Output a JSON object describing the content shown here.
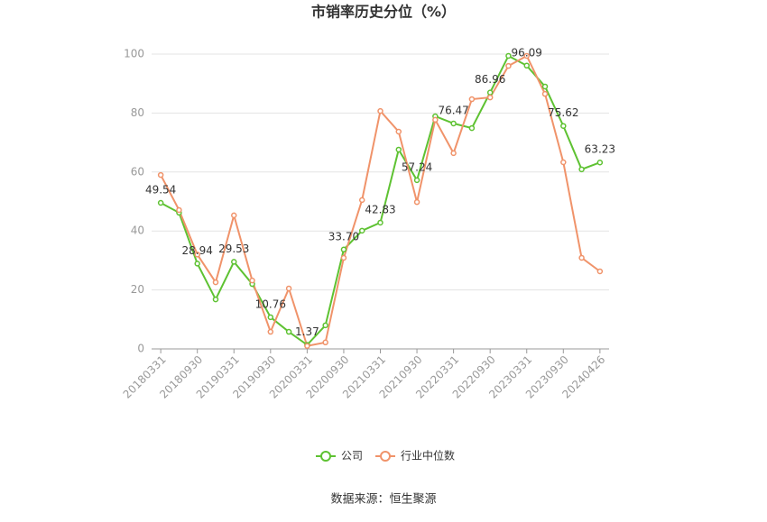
{
  "chart_data": {
    "type": "line",
    "title": "市销率历史分位（%）",
    "categories": [
      "20180331",
      null,
      "20180930",
      null,
      "20190331",
      null,
      "20190930",
      null,
      "20200331",
      null,
      "20200930",
      null,
      "20210331",
      null,
      "20210930",
      null,
      "20220331",
      null,
      "20220930",
      null,
      "20230331",
      null,
      "20230930",
      null,
      "20240426"
    ],
    "series": [
      {
        "name": "公司",
        "color": "#5ec232",
        "values": [
          49.54,
          46.2,
          28.94,
          16.8,
          29.53,
          22.0,
          10.76,
          5.8,
          1.37,
          8.0,
          33.7,
          40.1,
          42.83,
          67.6,
          57.24,
          78.9,
          76.47,
          74.9,
          86.96,
          99.4,
          96.09,
          89.0,
          75.62,
          60.9,
          63.23
        ],
        "value_labels": [
          "49.54",
          null,
          "28.94",
          null,
          "29.53",
          null,
          "10.76",
          null,
          "1.37",
          null,
          "33.70",
          null,
          "42.83",
          null,
          "57.24",
          null,
          "76.47",
          null,
          "86.96",
          null,
          "96.09",
          null,
          "75.62",
          null,
          "63.23"
        ]
      },
      {
        "name": "行业中位数",
        "color": "#f0936a",
        "values": [
          59.0,
          47.1,
          32.0,
          22.6,
          45.3,
          23.2,
          5.8,
          20.5,
          1.0,
          2.2,
          30.9,
          50.5,
          80.7,
          73.7,
          49.8,
          77.7,
          66.4,
          84.7,
          85.3,
          96.0,
          99.4,
          86.5,
          63.3,
          30.9,
          26.3
        ]
      }
    ],
    "ylim": [
      0,
      100
    ],
    "yticks": [
      0,
      20,
      40,
      60,
      80,
      100
    ],
    "grid": true,
    "source": "数据来源：恒生聚源"
  }
}
